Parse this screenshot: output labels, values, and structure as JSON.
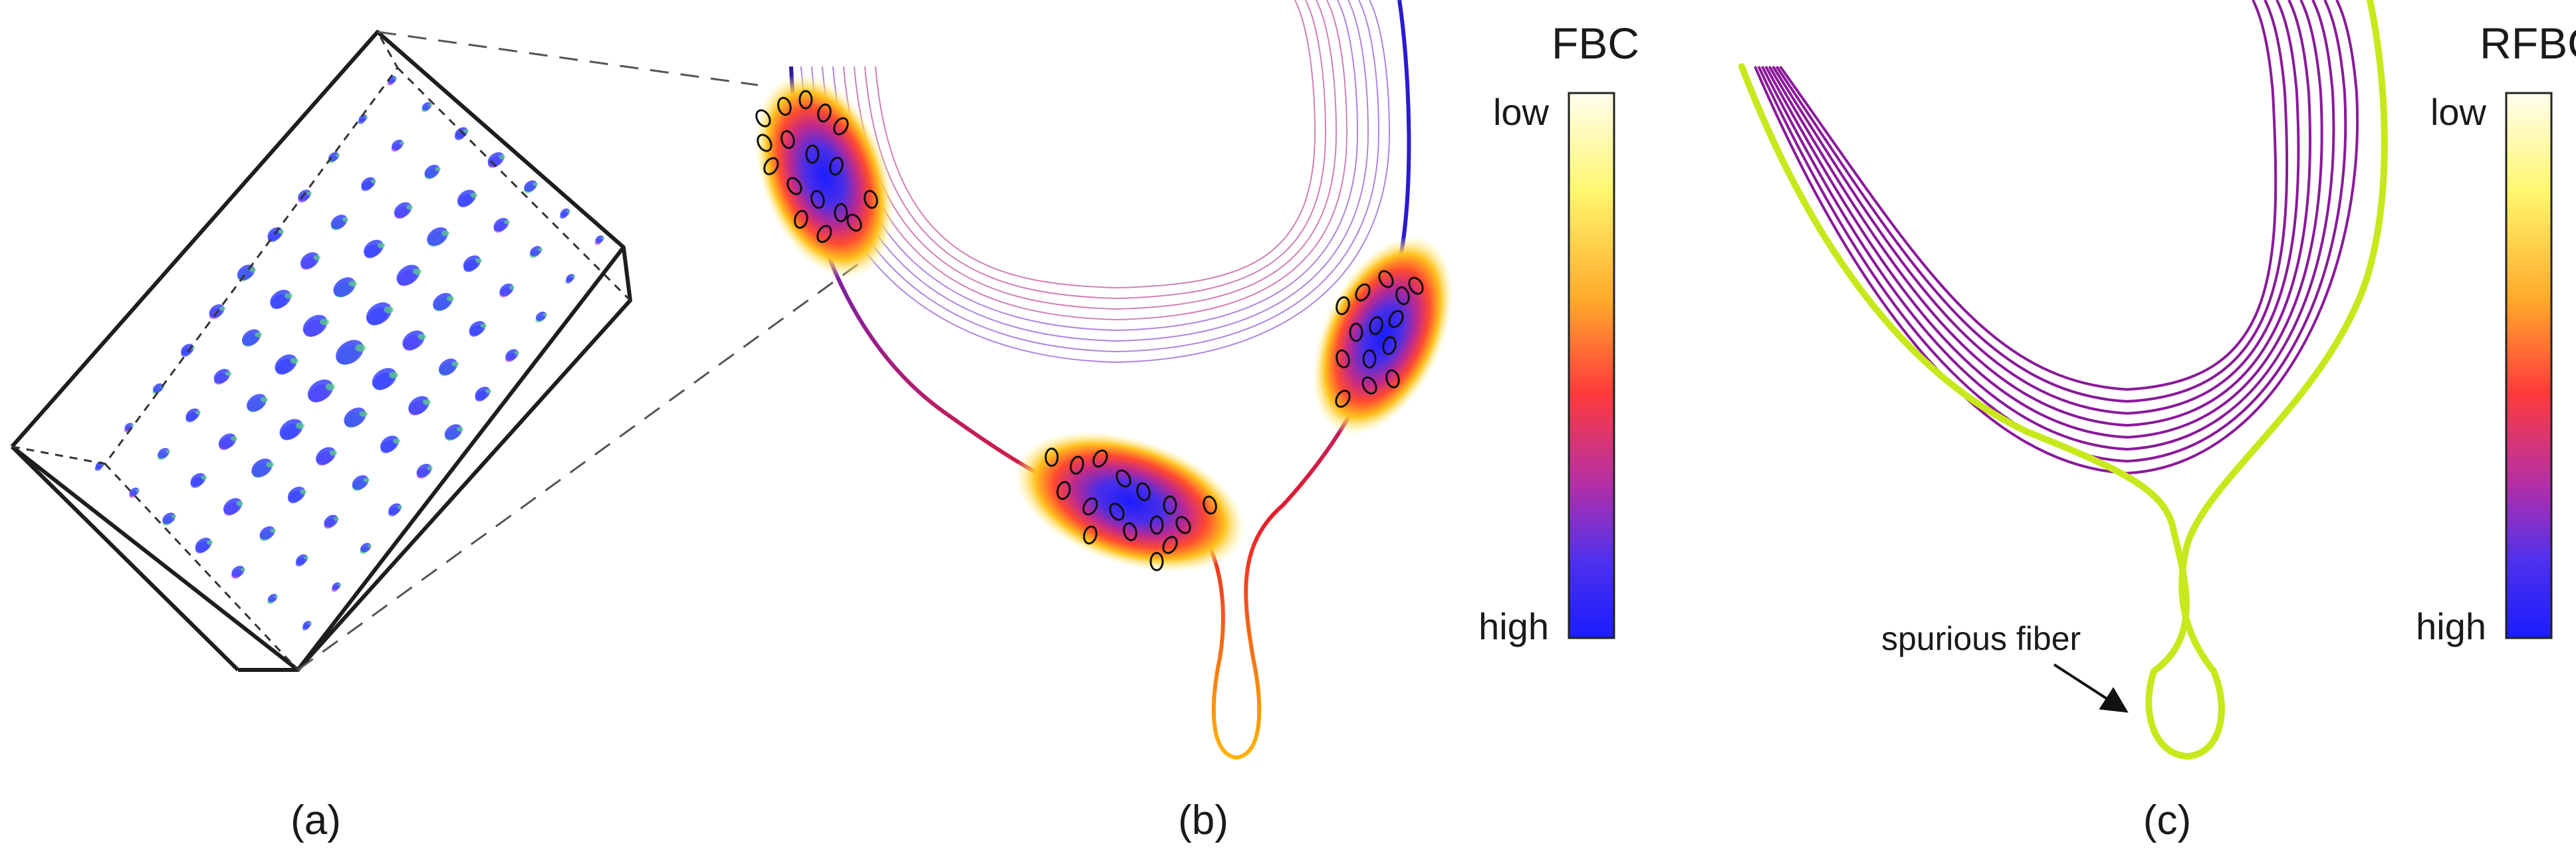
{
  "panels": [
    {
      "label": "(a)"
    },
    {
      "label": "(b)"
    },
    {
      "label": "(c)"
    }
  ],
  "colorbars": [
    {
      "title": "FBC",
      "low": "low",
      "high": "high"
    },
    {
      "title": "RFBC",
      "low": "low",
      "high": "high"
    }
  ],
  "annotation": {
    "text": "spurious fiber"
  },
  "colors": {
    "colormap": [
      "#fffbea",
      "#fff66a",
      "#ffae2a",
      "#ff3d38",
      "#b52fa6",
      "#4a2ff0",
      "#1a1fff"
    ],
    "fiber_purple": "#8a1a9a",
    "spurious_fiber": "#c8e81c",
    "glyph_blue": "#3a44ff",
    "glyph_purple": "#b14ad8",
    "glyph_green": "#5ad67a"
  }
}
